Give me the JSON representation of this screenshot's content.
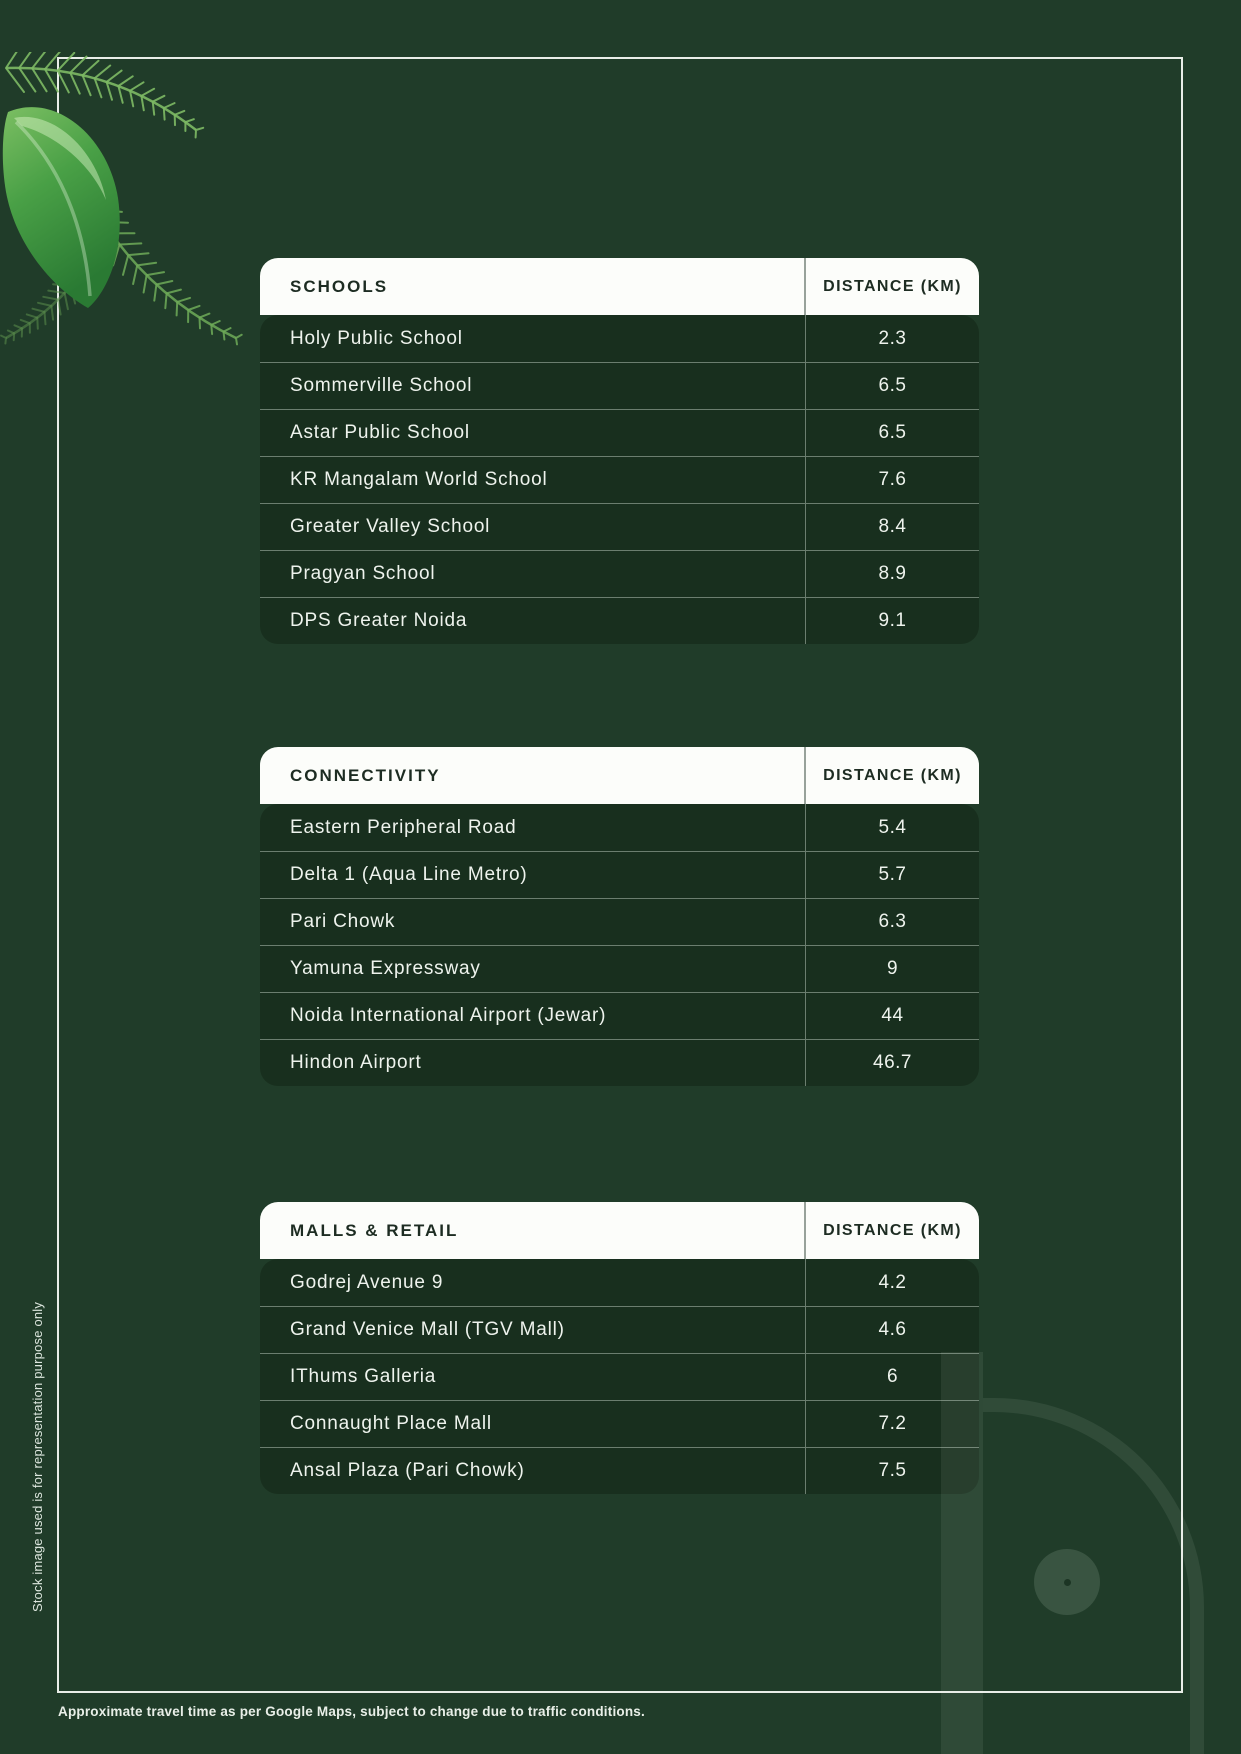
{
  "page": {
    "background_color": "#203c29",
    "table_row_color": "#182f1e",
    "table_header_color": "#fcfdfa",
    "footnote": "Approximate travel time as per Google Maps, subject to change due to traffic conditions.",
    "side_note": "Stock image used is for representation purpose only"
  },
  "tables": [
    {
      "header": "SCHOOLS",
      "distance_header": "DISTANCE (KM)",
      "rows": [
        {
          "name": "Holy Public School",
          "distance": "2.3"
        },
        {
          "name": "Sommerville School",
          "distance": "6.5"
        },
        {
          "name": "Astar Public School",
          "distance": "6.5"
        },
        {
          "name": "KR Mangalam World School",
          "distance": "7.6"
        },
        {
          "name": "Greater Valley School",
          "distance": "8.4"
        },
        {
          "name": "Pragyan School",
          "distance": "8.9"
        },
        {
          "name": "DPS Greater Noida",
          "distance": "9.1"
        }
      ]
    },
    {
      "header": "CONNECTIVITY",
      "distance_header": "DISTANCE (KM)",
      "rows": [
        {
          "name": "Eastern Peripheral Road",
          "distance": "5.4"
        },
        {
          "name": "Delta 1 (Aqua Line Metro)",
          "distance": "5.7"
        },
        {
          "name": "Pari Chowk",
          "distance": "6.3"
        },
        {
          "name": "Yamuna Expressway",
          "distance": "9"
        },
        {
          "name": "Noida International Airport (Jewar)",
          "distance": "44"
        },
        {
          "name": "Hindon Airport",
          "distance": "46.7"
        }
      ]
    },
    {
      "header": "MALLS & RETAIL",
      "distance_header": "DISTANCE (KM)",
      "rows": [
        {
          "name": "Godrej Avenue 9",
          "distance": "4.2"
        },
        {
          "name": "Grand Venice Mall (TGV Mall)",
          "distance": "4.6"
        },
        {
          "name": "IThums Galleria",
          "distance": "6"
        },
        {
          "name": "Connaught Place Mall",
          "distance": "7.2"
        },
        {
          "name": "Ansal Plaza (Pari Chowk)",
          "distance": "7.5"
        }
      ]
    }
  ]
}
